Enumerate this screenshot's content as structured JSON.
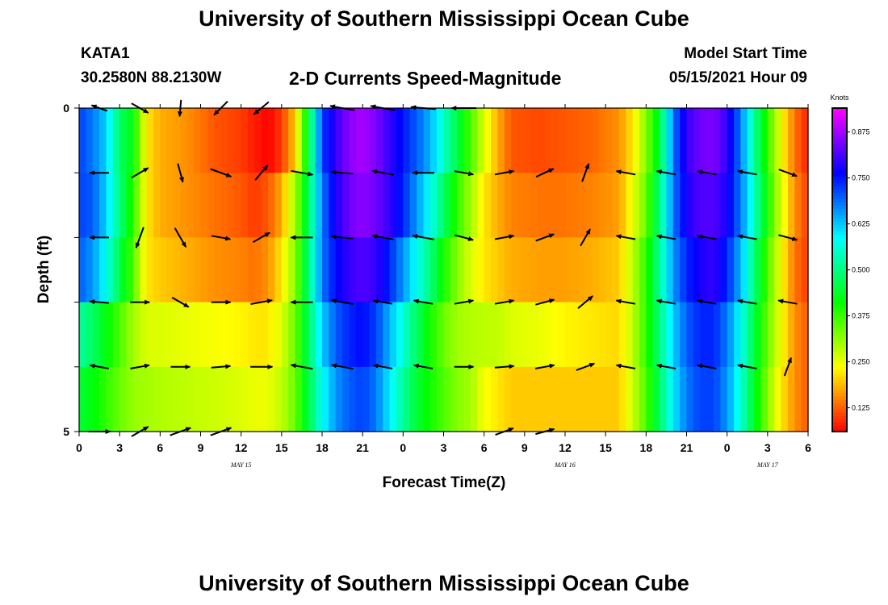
{
  "header": {
    "title_top": "University of Southern Mississippi Ocean Cube",
    "title_bottom": "University of Southern Mississippi Ocean Cube",
    "station": "KATA1",
    "coords": "30.2580N  88.2130W",
    "plot_title": "2-D Currents Speed-Magnitude",
    "model_label": "Model Start Time",
    "model_time": "05/15/2021 Hour 09"
  },
  "chart_data": {
    "type": "heatmap",
    "title": "2-D Currents Speed-Magnitude",
    "xlabel": "Forecast Time(Z)",
    "ylabel": "Depth (ft)",
    "xlim": [
      0,
      54
    ],
    "ylim": [
      0,
      5
    ],
    "x_ticks": [
      0,
      3,
      6,
      9,
      12,
      15,
      18,
      21,
      24,
      27,
      30,
      33,
      36,
      39,
      42,
      45,
      48,
      51,
      54
    ],
    "x_tick_labels": [
      "0",
      "3",
      "6",
      "9",
      "12",
      "15",
      "18",
      "21",
      "0",
      "3",
      "6",
      "9",
      "12",
      "15",
      "18",
      "21",
      "0",
      "3",
      "6"
    ],
    "y_tick_labels": [
      "0",
      "5"
    ],
    "date_labels": [
      {
        "text": "MAY 15",
        "hour": 12
      },
      {
        "text": "MAY 16",
        "hour": 36
      },
      {
        "text": "MAY 17",
        "hour": 51
      }
    ],
    "colorbar": {
      "unit": "Knots",
      "min": 0.06,
      "max": 0.94,
      "ticks": [
        "0.875",
        "0.750",
        "0.625",
        "0.500",
        "0.375",
        "0.250",
        "0.125"
      ],
      "tick_values": [
        0.875,
        0.75,
        0.625,
        0.5,
        0.375,
        0.25,
        0.125
      ]
    },
    "layer_depths": [
      0,
      1,
      2,
      3,
      4,
      5
    ],
    "speed_hours": [
      0,
      1,
      2,
      3,
      4,
      4.5,
      5,
      6,
      8,
      10,
      12,
      13,
      14,
      15,
      16,
      16.5,
      17,
      18,
      19,
      20,
      21,
      22,
      23,
      24,
      25,
      26,
      27,
      28,
      29,
      30,
      31,
      32,
      34,
      36,
      38,
      40,
      41,
      42,
      43,
      44,
      45,
      46,
      47,
      48,
      49,
      50,
      51,
      52,
      53,
      54
    ],
    "speed_layers": [
      [
        0.72,
        0.68,
        0.62,
        0.48,
        0.42,
        0.32,
        0.22,
        0.18,
        0.16,
        0.12,
        0.1,
        0.08,
        0.06,
        0.1,
        0.2,
        0.32,
        0.45,
        0.72,
        0.8,
        0.86,
        0.88,
        0.85,
        0.8,
        0.75,
        0.7,
        0.64,
        0.55,
        0.46,
        0.36,
        0.26,
        0.18,
        0.12,
        0.11,
        0.12,
        0.13,
        0.16,
        0.22,
        0.32,
        0.45,
        0.68,
        0.8,
        0.84,
        0.85,
        0.8,
        0.68,
        0.52,
        0.38,
        0.24,
        0.14,
        0.08
      ],
      [
        0.72,
        0.7,
        0.62,
        0.5,
        0.38,
        0.3,
        0.22,
        0.18,
        0.16,
        0.14,
        0.12,
        0.1,
        0.12,
        0.18,
        0.3,
        0.38,
        0.48,
        0.68,
        0.78,
        0.84,
        0.86,
        0.84,
        0.8,
        0.74,
        0.66,
        0.58,
        0.48,
        0.38,
        0.3,
        0.22,
        0.18,
        0.15,
        0.14,
        0.14,
        0.15,
        0.17,
        0.25,
        0.34,
        0.5,
        0.68,
        0.78,
        0.82,
        0.82,
        0.78,
        0.68,
        0.55,
        0.4,
        0.26,
        0.16,
        0.1
      ],
      [
        0.7,
        0.66,
        0.58,
        0.46,
        0.36,
        0.28,
        0.22,
        0.2,
        0.18,
        0.16,
        0.15,
        0.14,
        0.16,
        0.22,
        0.32,
        0.4,
        0.5,
        0.68,
        0.76,
        0.8,
        0.82,
        0.8,
        0.74,
        0.66,
        0.58,
        0.5,
        0.4,
        0.32,
        0.26,
        0.22,
        0.2,
        0.18,
        0.17,
        0.17,
        0.18,
        0.2,
        0.28,
        0.38,
        0.52,
        0.66,
        0.74,
        0.78,
        0.8,
        0.74,
        0.64,
        0.5,
        0.36,
        0.24,
        0.14,
        0.1
      ],
      [
        0.52,
        0.48,
        0.42,
        0.36,
        0.3,
        0.28,
        0.26,
        0.26,
        0.25,
        0.24,
        0.23,
        0.22,
        0.22,
        0.26,
        0.34,
        0.4,
        0.48,
        0.62,
        0.7,
        0.74,
        0.76,
        0.72,
        0.64,
        0.56,
        0.48,
        0.4,
        0.34,
        0.3,
        0.29,
        0.28,
        0.28,
        0.26,
        0.25,
        0.23,
        0.22,
        0.21,
        0.28,
        0.38,
        0.5,
        0.62,
        0.7,
        0.74,
        0.74,
        0.68,
        0.58,
        0.46,
        0.34,
        0.24,
        0.16,
        0.12
      ],
      [
        0.45,
        0.42,
        0.38,
        0.34,
        0.31,
        0.3,
        0.3,
        0.29,
        0.28,
        0.27,
        0.26,
        0.25,
        0.25,
        0.28,
        0.34,
        0.4,
        0.46,
        0.58,
        0.66,
        0.7,
        0.72,
        0.68,
        0.6,
        0.52,
        0.45,
        0.4,
        0.36,
        0.32,
        0.3,
        0.24,
        0.22,
        0.2,
        0.2,
        0.2,
        0.2,
        0.2,
        0.27,
        0.36,
        0.48,
        0.6,
        0.68,
        0.72,
        0.72,
        0.66,
        0.56,
        0.44,
        0.32,
        0.22,
        0.16,
        0.12
      ],
      [
        0.38,
        0.36,
        0.35,
        0.34,
        0.33,
        0.32,
        0.32,
        0.32,
        0.33,
        0.34,
        0.34,
        0.33,
        0.32,
        0.33,
        0.36,
        0.4,
        0.45,
        0.55,
        0.62,
        0.66,
        0.68,
        0.64,
        0.56,
        0.46,
        0.34,
        0.22,
        0.18,
        0.22,
        0.3,
        0.34,
        0.35,
        0.34,
        0.32,
        0.3,
        0.28,
        0.27,
        0.32,
        0.4,
        0.5,
        0.6,
        0.66,
        0.7,
        0.7,
        0.64,
        0.54,
        0.42,
        0.3,
        0.2,
        0.12,
        0.08
      ]
    ],
    "arrow_hours": [
      1.5,
      4.5,
      7.5,
      10.5,
      13.5,
      16.5,
      19.5,
      22.5,
      25.5,
      28.5,
      31.5,
      34.5,
      37.5,
      40.5,
      43.5,
      46.5,
      49.5,
      52.5
    ],
    "arrow_depths": [
      0,
      1,
      2,
      3,
      4,
      5
    ],
    "arrows": [
      [
        [
          200,
          0.6
        ],
        [
          30,
          0.7
        ],
        [
          95,
          0.6
        ],
        [
          135,
          0.7
        ],
        [
          140,
          0.7
        ],
        [
          0,
          0
        ],
        [
          190,
          0.9
        ],
        [
          190,
          0.9
        ],
        [
          185,
          0.9
        ],
        [
          180,
          0.9
        ],
        [
          0,
          0
        ],
        [
          0,
          0
        ],
        [
          0,
          0
        ],
        [
          0,
          0
        ],
        [
          0,
          0
        ],
        [
          0,
          0
        ],
        [
          0,
          0
        ],
        [
          0,
          0
        ]
      ],
      [
        [
          180,
          0.7
        ],
        [
          330,
          0.7
        ],
        [
          75,
          0.7
        ],
        [
          20,
          0.8
        ],
        [
          310,
          0.7
        ],
        [
          10,
          0.8
        ],
        [
          185,
          0.8
        ],
        [
          190,
          0.8
        ],
        [
          180,
          0.8
        ],
        [
          10,
          0.7
        ],
        [
          350,
          0.7
        ],
        [
          335,
          0.7
        ],
        [
          290,
          0.7
        ],
        [
          190,
          0.7
        ],
        [
          190,
          0.7
        ],
        [
          190,
          0.7
        ],
        [
          190,
          0.7
        ],
        [
          20,
          0.7
        ]
      ],
      [
        [
          180,
          0.7
        ],
        [
          110,
          0.8
        ],
        [
          60,
          0.8
        ],
        [
          10,
          0.7
        ],
        [
          330,
          0.7
        ],
        [
          180,
          0.8
        ],
        [
          185,
          0.8
        ],
        [
          190,
          0.8
        ],
        [
          190,
          0.8
        ],
        [
          15,
          0.7
        ],
        [
          350,
          0.7
        ],
        [
          340,
          0.7
        ],
        [
          300,
          0.7
        ],
        [
          190,
          0.7
        ],
        [
          190,
          0.7
        ],
        [
          190,
          0.7
        ],
        [
          190,
          0.7
        ],
        [
          15,
          0.7
        ]
      ],
      [
        [
          185,
          0.7
        ],
        [
          0,
          0.7
        ],
        [
          30,
          0.7
        ],
        [
          0,
          0.7
        ],
        [
          350,
          0.8
        ],
        [
          180,
          0.8
        ],
        [
          190,
          0.8
        ],
        [
          190,
          0.7
        ],
        [
          190,
          0.7
        ],
        [
          350,
          0.7
        ],
        [
          350,
          0.7
        ],
        [
          345,
          0.7
        ],
        [
          320,
          0.7
        ],
        [
          190,
          0.7
        ],
        [
          190,
          0.7
        ],
        [
          190,
          0.7
        ],
        [
          190,
          0.7
        ],
        [
          190,
          0.7
        ]
      ],
      [
        [
          190,
          0.7
        ],
        [
          350,
          0.7
        ],
        [
          0,
          0.7
        ],
        [
          355,
          0.7
        ],
        [
          0,
          0.8
        ],
        [
          190,
          0.8
        ],
        [
          190,
          0.8
        ],
        [
          190,
          0.7
        ],
        [
          190,
          0.7
        ],
        [
          0,
          0.7
        ],
        [
          355,
          0.7
        ],
        [
          350,
          0.7
        ],
        [
          340,
          0.7
        ],
        [
          190,
          0.7
        ],
        [
          190,
          0.7
        ],
        [
          190,
          0.7
        ],
        [
          190,
          0.7
        ],
        [
          290,
          0.7
        ]
      ],
      [
        [
          0,
          0.8
        ],
        [
          330,
          0.7
        ],
        [
          340,
          0.8
        ],
        [
          340,
          0.8
        ],
        [
          0,
          0
        ],
        [
          0,
          0
        ],
        [
          0,
          0
        ],
        [
          0,
          0
        ],
        [
          0,
          0
        ],
        [
          0,
          0
        ],
        [
          340,
          0.7
        ],
        [
          345,
          0.7
        ],
        [
          0,
          0
        ],
        [
          0,
          0
        ],
        [
          0,
          0
        ],
        [
          0,
          0
        ],
        [
          0,
          0
        ],
        [
          0,
          0
        ]
      ]
    ]
  }
}
